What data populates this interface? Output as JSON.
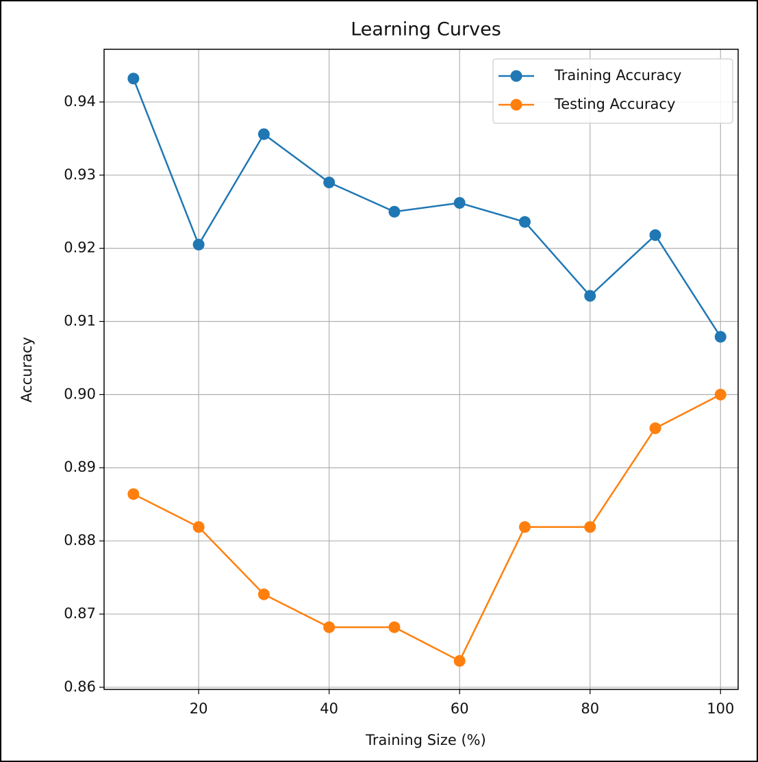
{
  "chart_data": {
    "type": "line",
    "title": "Learning Curves",
    "xlabel": "Training Size (%)",
    "ylabel": "Accuracy",
    "x": [
      10,
      20,
      30,
      40,
      50,
      60,
      70,
      80,
      90,
      100
    ],
    "series": [
      {
        "name": "Training Accuracy",
        "color": "#1f77b4",
        "values": [
          0.9432,
          0.9205,
          0.9356,
          0.929,
          0.925,
          0.9262,
          0.9236,
          0.9135,
          0.9218,
          0.9079
        ]
      },
      {
        "name": "Testing Accuracy",
        "color": "#ff7f0e",
        "values": [
          0.8864,
          0.8819,
          0.8727,
          0.8682,
          0.8682,
          0.8636,
          0.8819,
          0.8819,
          0.8954,
          0.9
        ]
      }
    ],
    "xlim": [
      5.5,
      102.7
    ],
    "ylim": [
      0.8597,
      0.9472
    ],
    "xticks": [
      20,
      40,
      60,
      80,
      100
    ],
    "yticks": [
      0.86,
      0.87,
      0.88,
      0.89,
      {
        "value": 0.9,
        "label": "0.90"
      },
      0.91,
      0.92,
      0.93,
      0.94
    ],
    "grid": true,
    "legend": "upper right"
  }
}
